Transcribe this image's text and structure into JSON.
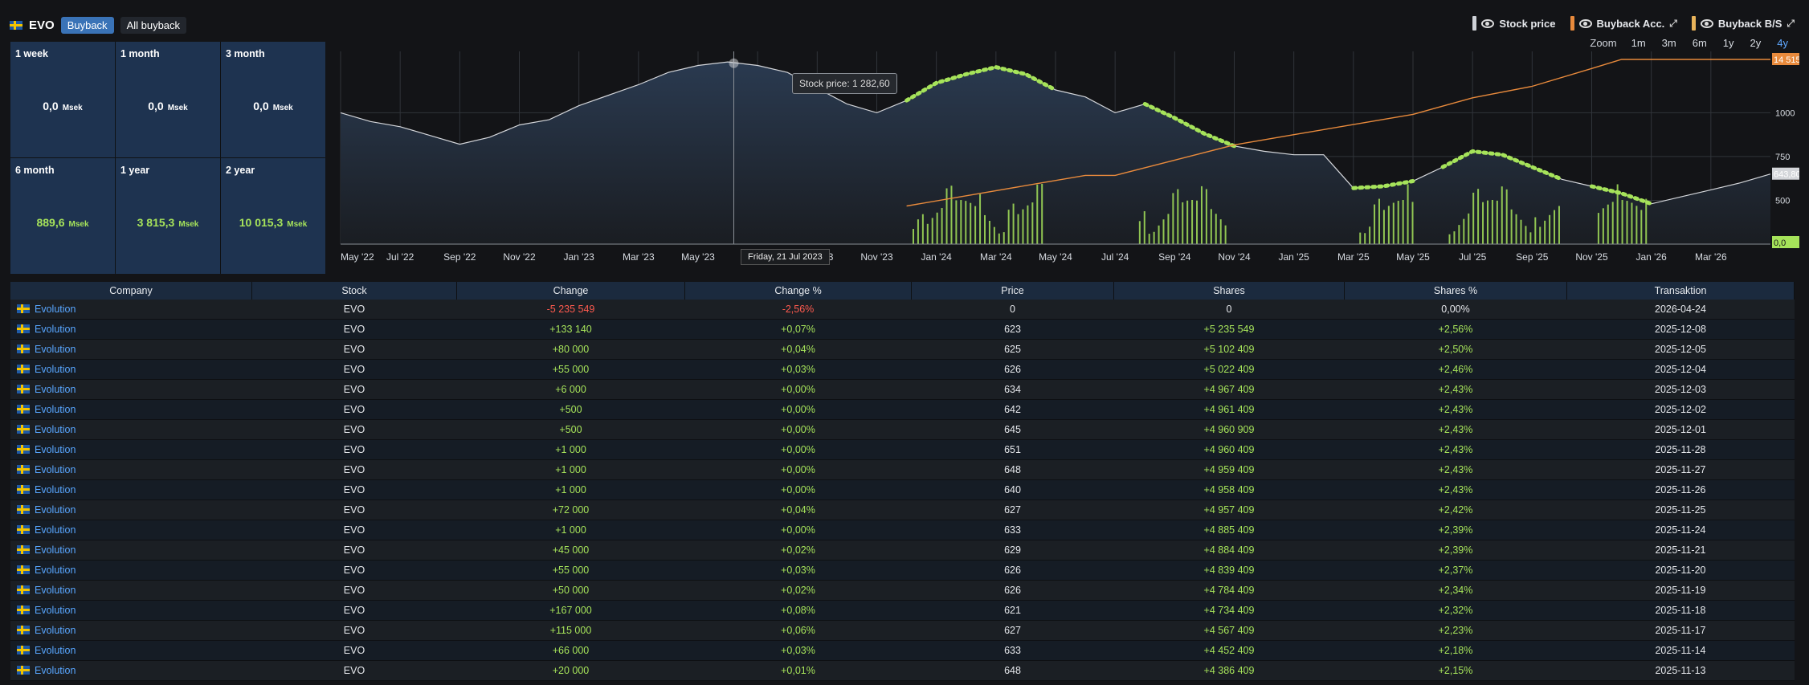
{
  "header": {
    "ticker": "EVO",
    "tabs": [
      "Buyback",
      "All buyback"
    ],
    "active_tab": 0
  },
  "legend": [
    {
      "label": "Stock price",
      "color": "#cfd2d8"
    },
    {
      "label": "Buyback Acc.",
      "color": "#e88a3c"
    },
    {
      "label": "Buyback B/S",
      "color": "#e8b35a"
    }
  ],
  "zoom": {
    "label": "Zoom",
    "options": [
      "1m",
      "3m",
      "6m",
      "1y",
      "2y",
      "4y"
    ],
    "active": "4y"
  },
  "stats": [
    {
      "label": "1 week",
      "value": "0,0",
      "unit": "Msek",
      "positive": false
    },
    {
      "label": "1 month",
      "value": "0,0",
      "unit": "Msek",
      "positive": false
    },
    {
      "label": "3 month",
      "value": "0,0",
      "unit": "Msek",
      "positive": false
    },
    {
      "label": "6 month",
      "value": "889,6",
      "unit": "Msek",
      "positive": true
    },
    {
      "label": "1 year",
      "value": "3 815,3",
      "unit": "Msek",
      "positive": true
    },
    {
      "label": "2 year",
      "value": "10 015,3",
      "unit": "Msek",
      "positive": true
    }
  ],
  "chart_data": {
    "type": "line",
    "x_ticks": [
      "May '22",
      "Jul '22",
      "Sep '22",
      "Nov '22",
      "Jan '23",
      "Mar '23",
      "May '23",
      "Jul '23",
      "Sep '23",
      "Nov '23",
      "Jan '24",
      "Mar '24",
      "May '24",
      "Jul '24",
      "Sep '24",
      "Nov '24",
      "Jan '25",
      "Mar '25",
      "May '25",
      "Jul '25",
      "Sep '25",
      "Nov '25",
      "Jan '26",
      "Mar '26"
    ],
    "y_ticks": [
      500,
      750,
      1000
    ],
    "ylim": [
      250,
      1350
    ],
    "last_price_label": "643,80",
    "acc_label": "14 515",
    "bs_label": "0,0",
    "tooltip": "Stock price: 1 282,60",
    "crosshair_date": "Friday, 21 Jul 2023",
    "series": [
      {
        "name": "Stock price",
        "color": "#d4d6da",
        "x": [
          0,
          0.5,
          1,
          1.5,
          2,
          2.5,
          3,
          3.5,
          4,
          4.5,
          5,
          5.5,
          6,
          6.5,
          7,
          7.5,
          8,
          8.5,
          9,
          9.5,
          10,
          10.5,
          11,
          11.5,
          12,
          12.5,
          13,
          13.5,
          14,
          14.5,
          15,
          15.5,
          16,
          16.5,
          17,
          17.5,
          18,
          18.5,
          19,
          19.5,
          20,
          20.5,
          21,
          21.5,
          22,
          22.5,
          23,
          23.5,
          24
        ],
        "values": [
          1000,
          950,
          920,
          870,
          820,
          860,
          930,
          960,
          1040,
          1100,
          1160,
          1230,
          1270,
          1290,
          1270,
          1230,
          1140,
          1050,
          1000,
          1070,
          1170,
          1220,
          1260,
          1220,
          1130,
          1090,
          1000,
          1050,
          970,
          880,
          810,
          780,
          760,
          760,
          570,
          580,
          610,
          690,
          780,
          760,
          690,
          620,
          580,
          540,
          480,
          520,
          560,
          600,
          650
        ]
      },
      {
        "name": "Buyback Acc.",
        "color": "#e88a3c",
        "x": [
          9.5,
          10.5,
          11.5,
          12.5,
          13,
          14,
          15,
          16,
          17,
          18,
          19,
          20,
          21,
          21.5,
          22,
          23,
          24
        ],
        "values": [
          3000,
          3800,
          4600,
          5400,
          5400,
          6600,
          7800,
          8600,
          9400,
          10200,
          11500,
          12400,
          13800,
          14515,
          14515,
          14515,
          14515
        ]
      },
      {
        "name": "Buyback B/S",
        "color": "#a6e35a",
        "ranges": [
          [
            9.6,
            11.8
          ],
          [
            13.4,
            14.9
          ],
          [
            17.1,
            18
          ],
          [
            18.6,
            20.5
          ],
          [
            21.1,
            21.9
          ]
        ]
      }
    ]
  },
  "table": {
    "columns": [
      "Company",
      "Stock",
      "Change",
      "Change %",
      "Price",
      "Shares",
      "Shares %",
      "Transaktion"
    ],
    "rows": [
      [
        "Evolution",
        "EVO",
        "-5 235 549",
        "-2,56%",
        "0",
        "0",
        "0,00%",
        "2026-04-24"
      ],
      [
        "Evolution",
        "EVO",
        "+133 140",
        "+0,07%",
        "623",
        "+5 235 549",
        "+2,56%",
        "2025-12-08"
      ],
      [
        "Evolution",
        "EVO",
        "+80 000",
        "+0,04%",
        "625",
        "+5 102 409",
        "+2,50%",
        "2025-12-05"
      ],
      [
        "Evolution",
        "EVO",
        "+55 000",
        "+0,03%",
        "626",
        "+5 022 409",
        "+2,46%",
        "2025-12-04"
      ],
      [
        "Evolution",
        "EVO",
        "+6 000",
        "+0,00%",
        "634",
        "+4 967 409",
        "+2,43%",
        "2025-12-03"
      ],
      [
        "Evolution",
        "EVO",
        "+500",
        "+0,00%",
        "642",
        "+4 961 409",
        "+2,43%",
        "2025-12-02"
      ],
      [
        "Evolution",
        "EVO",
        "+500",
        "+0,00%",
        "645",
        "+4 960 909",
        "+2,43%",
        "2025-12-01"
      ],
      [
        "Evolution",
        "EVO",
        "+1 000",
        "+0,00%",
        "651",
        "+4 960 409",
        "+2,43%",
        "2025-11-28"
      ],
      [
        "Evolution",
        "EVO",
        "+1 000",
        "+0,00%",
        "648",
        "+4 959 409",
        "+2,43%",
        "2025-11-27"
      ],
      [
        "Evolution",
        "EVO",
        "+1 000",
        "+0,00%",
        "640",
        "+4 958 409",
        "+2,43%",
        "2025-11-26"
      ],
      [
        "Evolution",
        "EVO",
        "+72 000",
        "+0,04%",
        "627",
        "+4 957 409",
        "+2,42%",
        "2025-11-25"
      ],
      [
        "Evolution",
        "EVO",
        "+1 000",
        "+0,00%",
        "633",
        "+4 885 409",
        "+2,39%",
        "2025-11-24"
      ],
      [
        "Evolution",
        "EVO",
        "+45 000",
        "+0,02%",
        "629",
        "+4 884 409",
        "+2,39%",
        "2025-11-21"
      ],
      [
        "Evolution",
        "EVO",
        "+55 000",
        "+0,03%",
        "626",
        "+4 839 409",
        "+2,37%",
        "2025-11-20"
      ],
      [
        "Evolution",
        "EVO",
        "+50 000",
        "+0,02%",
        "626",
        "+4 784 409",
        "+2,34%",
        "2025-11-19"
      ],
      [
        "Evolution",
        "EVO",
        "+167 000",
        "+0,08%",
        "621",
        "+4 734 409",
        "+2,32%",
        "2025-11-18"
      ],
      [
        "Evolution",
        "EVO",
        "+115 000",
        "+0,06%",
        "627",
        "+4 567 409",
        "+2,23%",
        "2025-11-17"
      ],
      [
        "Evolution",
        "EVO",
        "+66 000",
        "+0,03%",
        "633",
        "+4 452 409",
        "+2,18%",
        "2025-11-14"
      ],
      [
        "Evolution",
        "EVO",
        "+20 000",
        "+0,01%",
        "648",
        "+4 386 409",
        "+2,15%",
        "2025-11-13"
      ]
    ]
  }
}
